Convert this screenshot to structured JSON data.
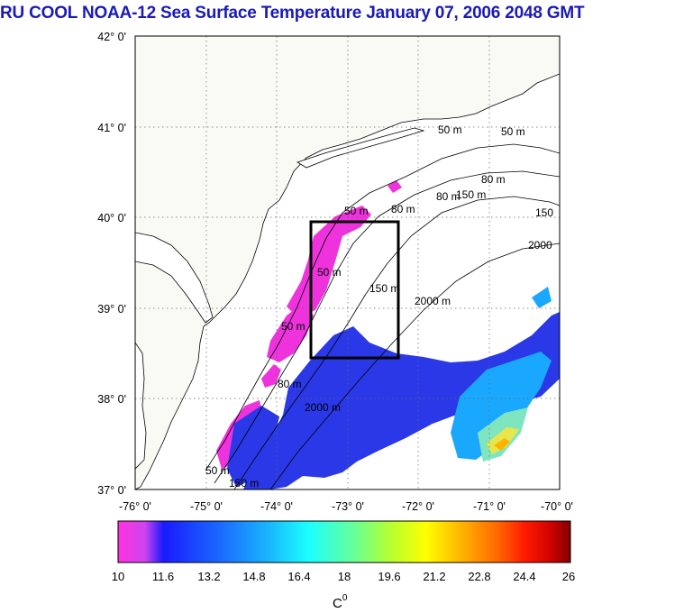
{
  "title": "RU COOL  NOAA-12 Sea Surface Temperature January 07, 2006 2048 GMT",
  "map": {
    "lon_range": [
      -76,
      -70
    ],
    "lat_range": [
      37,
      42
    ],
    "lon_ticks": [
      "-76° 0'",
      "-75° 0'",
      "-74° 0'",
      "-73° 0'",
      "-72° 0'",
      "-71° 0'",
      "-70° 0'"
    ],
    "lat_ticks": [
      "42° 0'",
      "41° 0'",
      "40° 0'",
      "39° 0'",
      "38° 0'",
      "37° 0'"
    ],
    "study_box": {
      "lon_min": -73.4,
      "lon_max": -72.4,
      "lat_min": 38.5,
      "lat_max": 40.0
    },
    "contour_labels": [
      "50 m",
      "50 m",
      "80 m",
      "80 m",
      "150 m",
      "150",
      "2000",
      "50 m",
      "150 m",
      "2000 m",
      "50 m",
      "80 m",
      "2000 m",
      "50 m",
      "150 m",
      "80 m",
      "50 m"
    ],
    "colors": {
      "land": "#fafaf5",
      "coast": "#000000",
      "grid": "#555555"
    }
  },
  "colorbar": {
    "min": 10,
    "max": 26,
    "tick_labels": [
      "10",
      "11.6",
      "13.2",
      "14.8",
      "16.4",
      "18",
      "19.6",
      "21.2",
      "22.8",
      "24.4",
      "26"
    ],
    "unit_label": "C",
    "unit_sup": "0",
    "stops": [
      "#ff33dd",
      "#cc33ee",
      "#1a1aff",
      "#1a66ff",
      "#1ab3ff",
      "#1affff",
      "#66ff99",
      "#b3ff33",
      "#ffff00",
      "#ffb300",
      "#ff6600",
      "#ff1a00",
      "#cc0000",
      "#800000"
    ]
  }
}
